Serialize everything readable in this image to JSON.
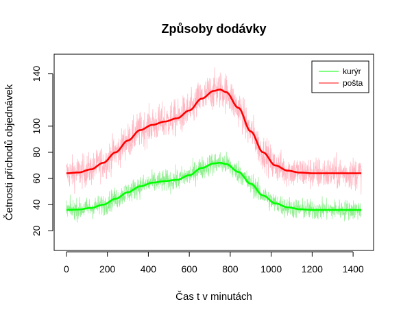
{
  "chart_data": {
    "type": "line",
    "title": "Způsoby dodávky",
    "xlabel": "Čas t v minutách",
    "ylabel": "Četnosti příchodů objednávek",
    "xlim": [
      -60,
      1500
    ],
    "ylim": [
      5,
      155
    ],
    "x_ticks": [
      0,
      200,
      400,
      600,
      800,
      1000,
      1200,
      1400
    ],
    "y_ticks": [
      20,
      40,
      60,
      80,
      100,
      140
    ],
    "legend_position": "top-right",
    "grid": false,
    "colors": {
      "kuryr_smooth": "#00ff00",
      "kuryr_raw": "#90ee90",
      "posta_smooth": "#ff0000",
      "posta_raw": "#ffb6c1"
    },
    "series": [
      {
        "name": "kurýr",
        "x": [
          0,
          60,
          120,
          180,
          240,
          300,
          360,
          420,
          480,
          540,
          600,
          660,
          720,
          750,
          780,
          840,
          900,
          960,
          1020,
          1080,
          1140,
          1200,
          1260,
          1320,
          1380,
          1440
        ],
        "smooth": [
          36,
          36.3,
          37.5,
          40,
          44.5,
          49.5,
          54,
          56.8,
          58,
          59,
          62.5,
          68,
          71.5,
          72,
          71,
          65,
          56,
          47,
          41,
          38,
          36.5,
          36,
          36,
          36,
          36,
          36
        ],
        "noise_amplitude": 9
      },
      {
        "name": "pošta",
        "x": [
          0,
          60,
          120,
          180,
          240,
          300,
          360,
          420,
          480,
          540,
          600,
          660,
          720,
          750,
          780,
          840,
          900,
          960,
          1020,
          1080,
          1140,
          1200,
          1260,
          1320,
          1380,
          1440
        ],
        "smooth": [
          64,
          64.6,
          67,
          72,
          80,
          89,
          97,
          101,
          103.5,
          106,
          112,
          121,
          127,
          128,
          126,
          114,
          96,
          80,
          70,
          66,
          64.5,
          64,
          64,
          64,
          64,
          64
        ],
        "noise_amplitude": 13
      }
    ]
  }
}
